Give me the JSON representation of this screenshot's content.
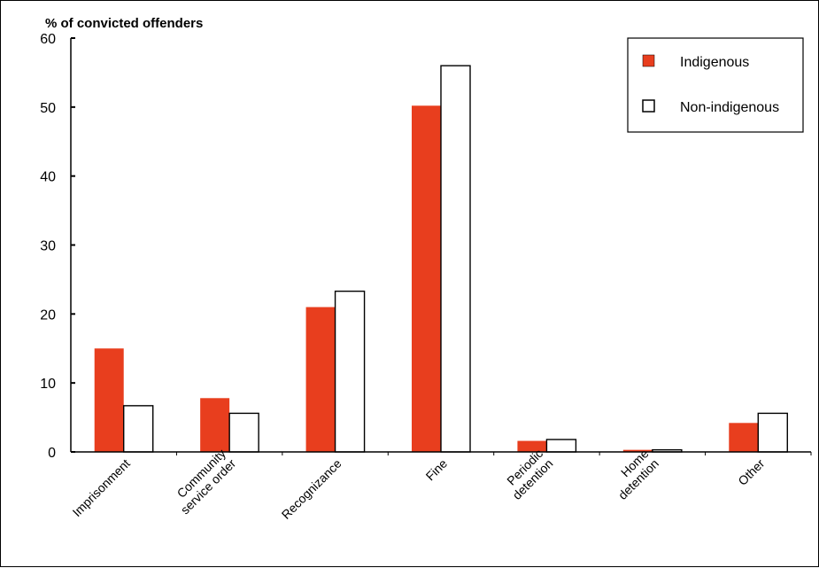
{
  "chart_data": {
    "type": "bar",
    "ylabel": "% of convicted offenders",
    "ylim": [
      0,
      60
    ],
    "yticks": [
      0,
      10,
      20,
      30,
      40,
      50,
      60
    ],
    "categories": [
      [
        "Imprisonment"
      ],
      [
        "Community",
        "service order"
      ],
      [
        "Recognizance"
      ],
      [
        "Fine"
      ],
      [
        "Periodic",
        "detention"
      ],
      [
        "Home",
        "detention"
      ],
      [
        "Other"
      ]
    ],
    "series": [
      {
        "name": "Indigenous",
        "color": "#e83e1e",
        "values": [
          15,
          7.8,
          21,
          50.2,
          1.6,
          0.3,
          4.2
        ]
      },
      {
        "name": "Non-indigenous",
        "color": "#ffffff",
        "values": [
          6.7,
          5.6,
          23.3,
          56,
          1.8,
          0.3,
          5.6
        ]
      }
    ],
    "legend_position": "top-right",
    "grid": false
  }
}
